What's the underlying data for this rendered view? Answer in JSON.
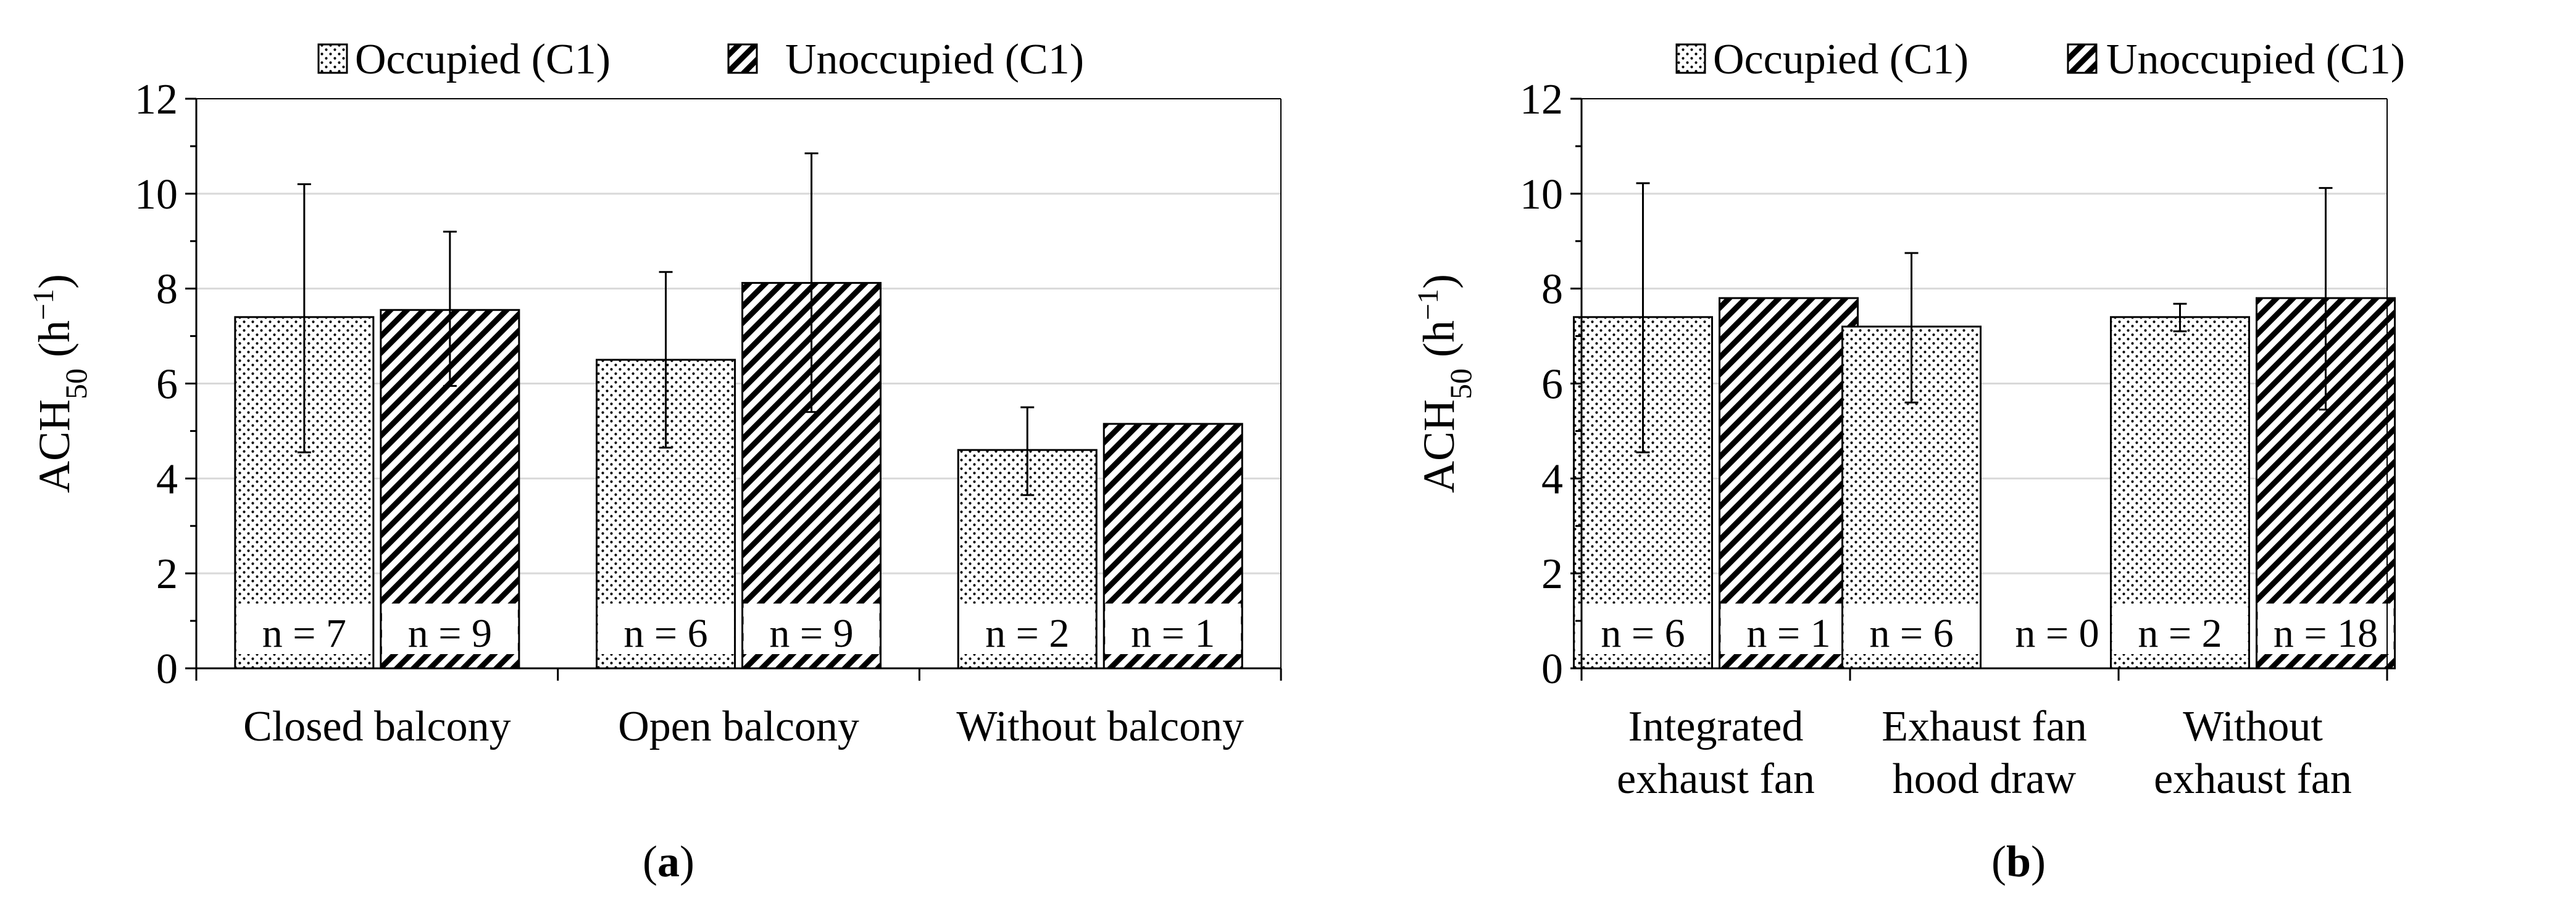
{
  "colors": {
    "bar_fill": "#ffffff",
    "bar_stroke": "#000000",
    "pattern": "#000000",
    "grid": "#d9d9d9",
    "axis": "#000000"
  },
  "chart_data": [
    {
      "type": "bar",
      "panel_label": "a",
      "legend": [
        "Occupied (C1)",
        "Unoccupied (C1)"
      ],
      "legend_position": "top",
      "ylabel": {
        "main": "ACH",
        "sub": "50",
        "unit_open": " (h",
        "sup": "−1",
        "unit_close": ")"
      },
      "ylim": [
        0,
        12
      ],
      "yticks": [
        "0",
        "2",
        "4",
        "6",
        "8",
        "10",
        "12"
      ],
      "grid": true,
      "categories": [
        [
          "Closed balcony"
        ],
        [
          "Open balcony"
        ],
        [
          "Without balcony"
        ]
      ],
      "series": [
        {
          "name": "Occupied (C1)",
          "pattern": "dots",
          "values": [
            7.4,
            6.5,
            4.6
          ],
          "err_low": [
            4.55,
            4.65,
            3.65
          ],
          "err_high": [
            10.2,
            8.35,
            5.5
          ],
          "n_labels": [
            "n = 7",
            "n = 6",
            "n = 2"
          ]
        },
        {
          "name": "Unoccupied (C1)",
          "pattern": "hatch",
          "values": [
            7.55,
            8.12,
            5.15
          ],
          "err_low": [
            5.95,
            5.4,
            null
          ],
          "err_high": [
            9.2,
            10.85,
            null
          ],
          "n_labels": [
            "n = 9",
            "n = 9",
            "n = 1"
          ]
        }
      ]
    },
    {
      "type": "bar",
      "panel_label": "b",
      "legend": [
        "Occupied (C1)",
        "Unoccupied (C1)"
      ],
      "legend_position": "top",
      "ylabel": {
        "main": "ACH",
        "sub": "50",
        "unit_open": " (h",
        "sup": "−1",
        "unit_close": ")"
      },
      "ylim": [
        0,
        12
      ],
      "yticks": [
        "0",
        "2",
        "4",
        "6",
        "8",
        "10",
        "12"
      ],
      "grid": true,
      "categories": [
        [
          "Integrated",
          "exhaust fan"
        ],
        [
          "Exhaust fan",
          "hood draw"
        ],
        [
          "Without",
          "exhaust fan"
        ]
      ],
      "series": [
        {
          "name": "Occupied (C1)",
          "pattern": "dots",
          "values": [
            7.4,
            7.2,
            7.4
          ],
          "err_low": [
            4.55,
            5.6,
            7.1
          ],
          "err_high": [
            10.22,
            8.75,
            7.68
          ],
          "n_labels": [
            "n = 6",
            "n = 6",
            "n = 2"
          ]
        },
        {
          "name": "Unoccupied (C1)",
          "pattern": "hatch",
          "values": [
            7.8,
            0,
            7.8
          ],
          "err_low": [
            null,
            null,
            5.45
          ],
          "err_high": [
            null,
            null,
            10.12
          ],
          "n_labels": [
            "n = 1",
            "n = 0",
            "n = 18"
          ]
        }
      ]
    }
  ]
}
